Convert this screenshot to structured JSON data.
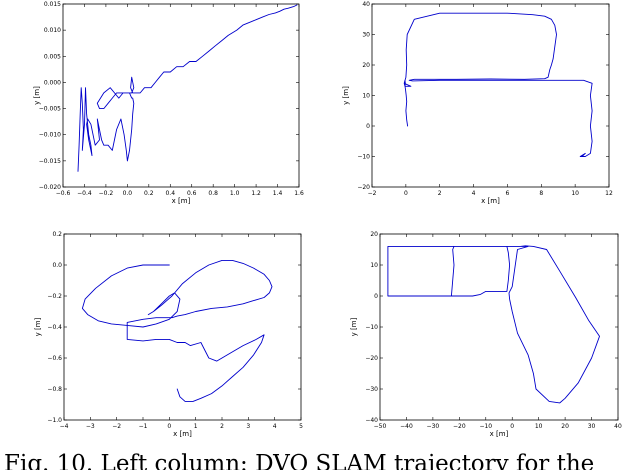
{
  "caption": "Fig. 10. Left column: DVO SLAM trajectory for the",
  "chart_data": [
    {
      "type": "line",
      "xlabel": "x [m]",
      "ylabel": "y [m]",
      "xlim": [
        -0.6,
        1.6
      ],
      "ylim": [
        -0.02,
        0.015
      ],
      "xticks": [
        -0.6,
        -0.4,
        -0.2,
        0.0,
        0.2,
        0.4,
        0.6,
        0.8,
        1.0,
        1.2,
        1.4,
        1.6
      ],
      "xtick_labels": [
        "−0.6",
        "−0.4",
        "−0.2",
        "0.0",
        "0.2",
        "0.4",
        "0.6",
        "0.8",
        "1.0",
        "1.2",
        "1.4",
        "1.6"
      ],
      "yticks": [
        -0.02,
        -0.015,
        -0.01,
        -0.005,
        0.0,
        0.005,
        0.01,
        0.015
      ],
      "ytick_labels": [
        "−0.020",
        "−0.015",
        "−0.010",
        "−0.005",
        "0.000",
        "0.005",
        "0.010",
        "0.015"
      ],
      "grid": false,
      "color": "#0000cc",
      "x": [
        -0.46,
        -0.45,
        -0.44,
        -0.43,
        -0.42,
        -0.41,
        -0.42,
        -0.4,
        -0.39,
        -0.38,
        -0.36,
        -0.34,
        -0.33,
        -0.36,
        -0.38,
        -0.37,
        -0.34,
        -0.3,
        -0.26,
        -0.28,
        -0.24,
        -0.22,
        -0.18,
        -0.14,
        -0.1,
        -0.06,
        -0.03,
        -0.01,
        0.0,
        0.02,
        0.04,
        0.05,
        0.06,
        0.05,
        0.04,
        0.02,
        0.01,
        0.0,
        -0.02,
        -0.06,
        -0.1,
        -0.14,
        -0.18,
        -0.22,
        -0.26,
        -0.28,
        -0.22,
        -0.16,
        -0.12,
        -0.08,
        -0.04,
        0.0,
        0.04,
        0.06,
        0.04,
        0.03,
        0.05,
        0.08,
        0.12,
        0.16,
        0.22,
        0.26,
        0.3,
        0.34,
        0.4,
        0.46,
        0.52,
        0.58,
        0.64,
        0.7,
        0.76,
        0.82,
        0.88,
        0.94,
        0.98,
        1.02,
        1.08,
        1.14,
        1.2,
        1.26,
        1.32,
        1.38,
        1.42,
        1.46,
        1.5,
        1.55,
        1.58
      ],
      "y": [
        -0.017,
        -0.012,
        -0.006,
        -0.001,
        -0.004,
        -0.009,
        -0.013,
        -0.008,
        -0.001,
        -0.006,
        -0.01,
        -0.012,
        -0.014,
        -0.011,
        -0.008,
        -0.007,
        -0.008,
        -0.012,
        -0.011,
        -0.007,
        -0.011,
        -0.012,
        -0.012,
        -0.013,
        -0.009,
        -0.007,
        -0.01,
        -0.013,
        -0.015,
        -0.013,
        -0.009,
        -0.006,
        -0.004,
        -0.003,
        -0.003,
        -0.002,
        -0.002,
        -0.002,
        -0.002,
        -0.002,
        -0.002,
        -0.003,
        -0.004,
        -0.005,
        -0.005,
        -0.004,
        -0.002,
        -0.001,
        -0.002,
        -0.003,
        -0.002,
        -0.002,
        -0.002,
        -0.001,
        0.001,
        -0.001,
        -0.002,
        -0.002,
        -0.002,
        -0.001,
        -0.001,
        0.0,
        0.001,
        0.002,
        0.002,
        0.003,
        0.003,
        0.004,
        0.004,
        0.005,
        0.006,
        0.007,
        0.008,
        0.009,
        0.0095,
        0.01,
        0.011,
        0.0115,
        0.012,
        0.0125,
        0.013,
        0.0133,
        0.0136,
        0.014,
        0.0142,
        0.0145,
        0.0148
      ]
    },
    {
      "type": "line",
      "xlabel": "x [m]",
      "ylabel": "y [m]",
      "xlim": [
        -2,
        12
      ],
      "ylim": [
        -20,
        40
      ],
      "xticks": [
        -2,
        0,
        2,
        4,
        6,
        8,
        10,
        12
      ],
      "xtick_labels": [
        "−2",
        "0",
        "2",
        "4",
        "6",
        "8",
        "10",
        "12"
      ],
      "yticks": [
        -20,
        -10,
        0,
        10,
        20,
        30,
        40
      ],
      "ytick_labels": [
        "−20",
        "−10",
        "0",
        "10",
        "20",
        "30",
        "40"
      ],
      "grid": false,
      "color": "#0000cc",
      "x": [
        0.1,
        0.05,
        0.0,
        0.05,
        0.02,
        -0.02,
        -0.05,
        -0.03,
        -0.05,
        -0.1,
        -0.05,
        0.0,
        0.3,
        -0.1,
        0.0,
        0.05,
        0.02,
        0.08,
        0.5,
        2.0,
        4.0,
        6.0,
        7.5,
        8.2,
        8.6,
        8.8,
        8.9,
        8.8,
        8.7,
        8.6,
        8.5,
        8.4,
        8.2,
        7.0,
        5.0,
        3.0,
        1.5,
        0.5,
        0.2,
        0.4,
        2.0,
        4.0,
        6.0,
        8.0,
        9.5,
        10.5,
        11.0,
        10.9,
        11.0,
        10.9,
        11.0,
        10.9,
        10.6,
        10.3,
        10.6,
        10.4
      ],
      "y": [
        0,
        2,
        5,
        8,
        10,
        12,
        13,
        14,
        15,
        14,
        13,
        13,
        13,
        14,
        16,
        20,
        25,
        30,
        35,
        37,
        37,
        37,
        36.5,
        36,
        35,
        33,
        30,
        26,
        22,
        20,
        18.5,
        16,
        15.5,
        15.3,
        15.4,
        15.3,
        15.3,
        15.3,
        15.0,
        14.8,
        15.0,
        15.0,
        15.0,
        15.0,
        15.0,
        15.0,
        14,
        10,
        5,
        0,
        -5,
        -9,
        -10,
        -10,
        -9,
        -10
      ]
    },
    {
      "type": "line",
      "xlabel": "x [m]",
      "ylabel": "y [m]",
      "xlim": [
        -4,
        5
      ],
      "ylim": [
        -1.0,
        0.2
      ],
      "xticks": [
        -4,
        -3,
        -2,
        -1,
        0,
        1,
        2,
        3,
        4,
        5
      ],
      "xtick_labels": [
        "−4",
        "−3",
        "−2",
        "−1",
        "0",
        "1",
        "2",
        "3",
        "4",
        "5"
      ],
      "yticks": [
        -1.0,
        -0.8,
        -0.6,
        -0.4,
        -0.2,
        0.0,
        0.2
      ],
      "ytick_labels": [
        "−1.0",
        "−0.8",
        "−0.6",
        "−0.4",
        "−0.2",
        "0.0",
        "0.2"
      ],
      "grid": false,
      "color": "#0000cc",
      "x": [
        0.0,
        -0.5,
        -1.0,
        -1.6,
        -2.2,
        -2.8,
        -3.2,
        -3.3,
        -3.1,
        -2.7,
        -2.2,
        -1.6,
        -1.0,
        -0.5,
        0.0,
        0.3,
        0.4,
        0.2,
        0.0,
        -0.3,
        -0.6,
        -0.8,
        -0.6,
        -0.3,
        0.1,
        0.5,
        1.0,
        1.5,
        2.0,
        2.4,
        2.8,
        3.2,
        3.6,
        3.8,
        3.9,
        3.8,
        3.6,
        3.2,
        2.8,
        2.2,
        1.6,
        1.0,
        0.6,
        0.3,
        0.1,
        -0.5,
        -1.0,
        -1.6,
        -1.6,
        -1.0,
        -0.5,
        0.0,
        0.3,
        0.6,
        0.8,
        1.2,
        1.5,
        1.8,
        2.2,
        2.8,
        3.3,
        3.6,
        3.5,
        3.2,
        2.8,
        2.4,
        2.0,
        1.6,
        1.2,
        0.9,
        0.6,
        0.4,
        0.3
      ],
      "y": [
        0.0,
        0.0,
        0.0,
        -0.02,
        -0.07,
        -0.15,
        -0.22,
        -0.28,
        -0.32,
        -0.36,
        -0.38,
        -0.39,
        -0.4,
        -0.38,
        -0.35,
        -0.3,
        -0.22,
        -0.18,
        -0.2,
        -0.25,
        -0.3,
        -0.32,
        -0.3,
        -0.26,
        -0.2,
        -0.12,
        -0.05,
        0.0,
        0.03,
        0.03,
        0.01,
        -0.02,
        -0.06,
        -0.1,
        -0.14,
        -0.18,
        -0.21,
        -0.23,
        -0.25,
        -0.27,
        -0.28,
        -0.3,
        -0.32,
        -0.33,
        -0.34,
        -0.34,
        -0.35,
        -0.37,
        -0.48,
        -0.49,
        -0.48,
        -0.48,
        -0.5,
        -0.5,
        -0.52,
        -0.5,
        -0.6,
        -0.62,
        -0.58,
        -0.52,
        -0.48,
        -0.45,
        -0.5,
        -0.58,
        -0.66,
        -0.72,
        -0.78,
        -0.83,
        -0.86,
        -0.88,
        -0.88,
        -0.85,
        -0.8
      ]
    },
    {
      "type": "line",
      "xlabel": "x [m]",
      "ylabel": "y [m]",
      "xlim": [
        -50,
        40
      ],
      "ylim": [
        -40,
        20
      ],
      "xticks": [
        -50,
        -40,
        -30,
        -20,
        -10,
        0,
        10,
        20,
        30,
        40
      ],
      "xtick_labels": [
        "−50",
        "−40",
        "−30",
        "−20",
        "−10",
        "0",
        "10",
        "20",
        "30",
        "40"
      ],
      "yticks": [
        -40,
        -30,
        -20,
        -10,
        0,
        10,
        20
      ],
      "ytick_labels": [
        "−40",
        "−30",
        "−20",
        "−10",
        "0",
        "10",
        "20"
      ],
      "grid": false,
      "color": "#0000cc",
      "x": [
        -47,
        -35,
        -25,
        -15,
        -12,
        -10,
        -8,
        -5,
        -2,
        -1.5,
        -1.0,
        -1.5,
        -2.0,
        0.0,
        3.0,
        5.0,
        8.0,
        13.0,
        18.0,
        24.0,
        29.0,
        33.0,
        30.0,
        25.0,
        20.0,
        18.0,
        14.0,
        9.0,
        8.0,
        6.0,
        2.0,
        0.0,
        -1.0,
        -1.2,
        0.0,
        2.0,
        6.0,
        -2.0,
        -10.0,
        -20.0,
        -30.0,
        -40.0,
        -47.0,
        -47.0,
        -47.0,
        -47.0,
        -35.0,
        -23.0,
        -22.5,
        -22.0,
        -22.5,
        -22.0
      ],
      "y": [
        0,
        0,
        0,
        0,
        0.5,
        1.5,
        1.5,
        1.5,
        1.5,
        5.0,
        10.0,
        14.0,
        16.0,
        16.0,
        16.0,
        16.2,
        16.0,
        15.0,
        8.0,
        -0.5,
        -8.0,
        -13.0,
        -20.0,
        -28.0,
        -33.0,
        -34.5,
        -34.0,
        -30.0,
        -25.0,
        -19.0,
        -12.0,
        -5.0,
        -1.0,
        1.0,
        3.0,
        15.0,
        16.0,
        16.0,
        16.0,
        16.0,
        16.0,
        16.0,
        16.0,
        10.0,
        5.0,
        0.0,
        0.0,
        0.0,
        5.0,
        10.0,
        15.0,
        16.0
      ]
    }
  ]
}
